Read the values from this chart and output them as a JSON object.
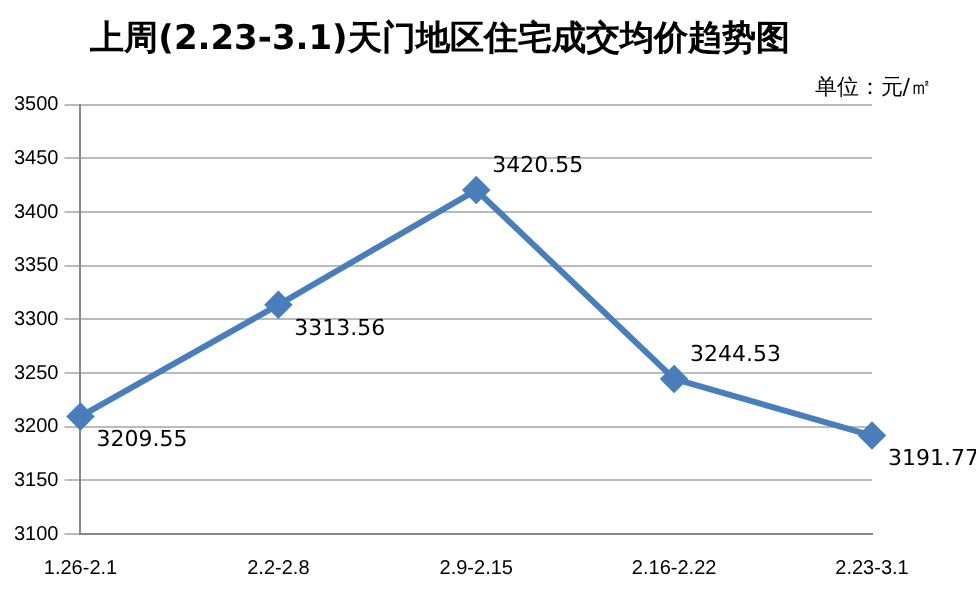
{
  "chart_data": {
    "type": "line",
    "title": "上周(2.23-3.1)天门地区住宅成交均价趋势图",
    "annotations": [
      "单位：元/㎡"
    ],
    "categories": [
      "1.26-2.1",
      "2.2-2.8",
      "2.9-2.15",
      "2.16-2.22",
      "2.23-3.1"
    ],
    "series": [
      {
        "color": "#4a7ebb",
        "values": [
          3209.55,
          3313.56,
          3420.55,
          3244.53,
          3191.77
        ]
      }
    ],
    "ylim": [
      3100,
      3500
    ],
    "yticks": [
      3100,
      3150,
      3200,
      3250,
      3300,
      3350,
      3400,
      3450,
      3500
    ],
    "grid": "y",
    "marker": "diamond",
    "line_style": "solid",
    "data_labels": true,
    "legend": false
  }
}
